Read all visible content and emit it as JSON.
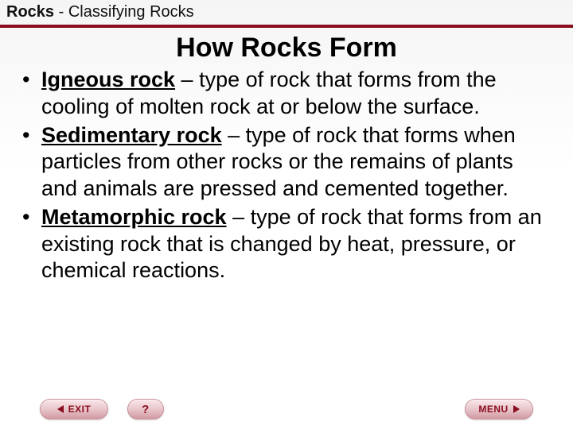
{
  "header": {
    "topic": "Rocks",
    "separator": " - ",
    "subtitle": "Classifying Rocks"
  },
  "title": "How Rocks Form",
  "bullets": [
    {
      "term": "Igneous rock",
      "def": " – type of rock that forms from the cooling of molten rock at or below the surface."
    },
    {
      "term": "Sedimentary rock",
      "def": " – type of rock that forms when particles from other rocks or the remains of plants and animals are pressed and cemented together."
    },
    {
      "term": "Metamorphic rock",
      "def": " – type of rock that forms from an existing rock that is changed by heat, pressure, or chemical reactions."
    }
  ],
  "footer": {
    "exit": "EXIT",
    "menu": "MENU"
  }
}
